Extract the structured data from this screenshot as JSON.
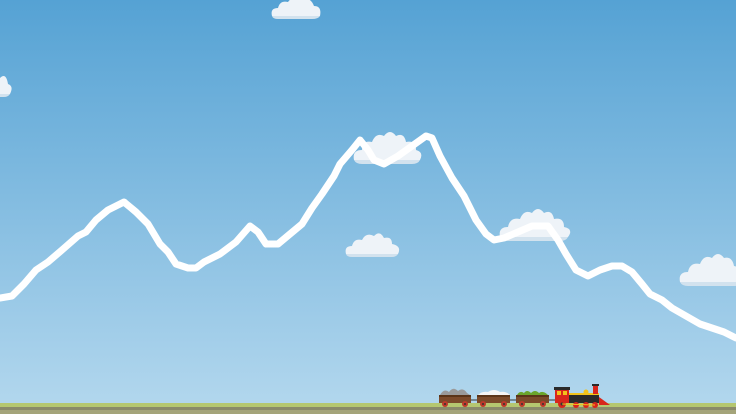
{
  "scene": {
    "sky_top_color": "#55a2d4",
    "sky_bottom_color": "#b4d8ee",
    "track_line_color": "#ffffff",
    "cloud_color": "#eef3f8",
    "cloud_shade_color": "#d2e2ee",
    "ground_grass_color": "#b5c770",
    "ground_rail_color": "#8a8a6a"
  },
  "train": {
    "locomotive": {
      "body_color": "#d8261c",
      "trim_color": "#2a2a2a",
      "accent_color": "#f2c21b"
    },
    "cars": [
      {
        "kind": "wagon-with-rocks",
        "load_color": "#9a9a9a"
      },
      {
        "kind": "wagon-with-snow",
        "load_color": "#f4f4f4"
      },
      {
        "kind": "wagon-with-plants",
        "load_color": "#6aa52c"
      }
    ],
    "car_body_color": "#7b4a2a"
  }
}
